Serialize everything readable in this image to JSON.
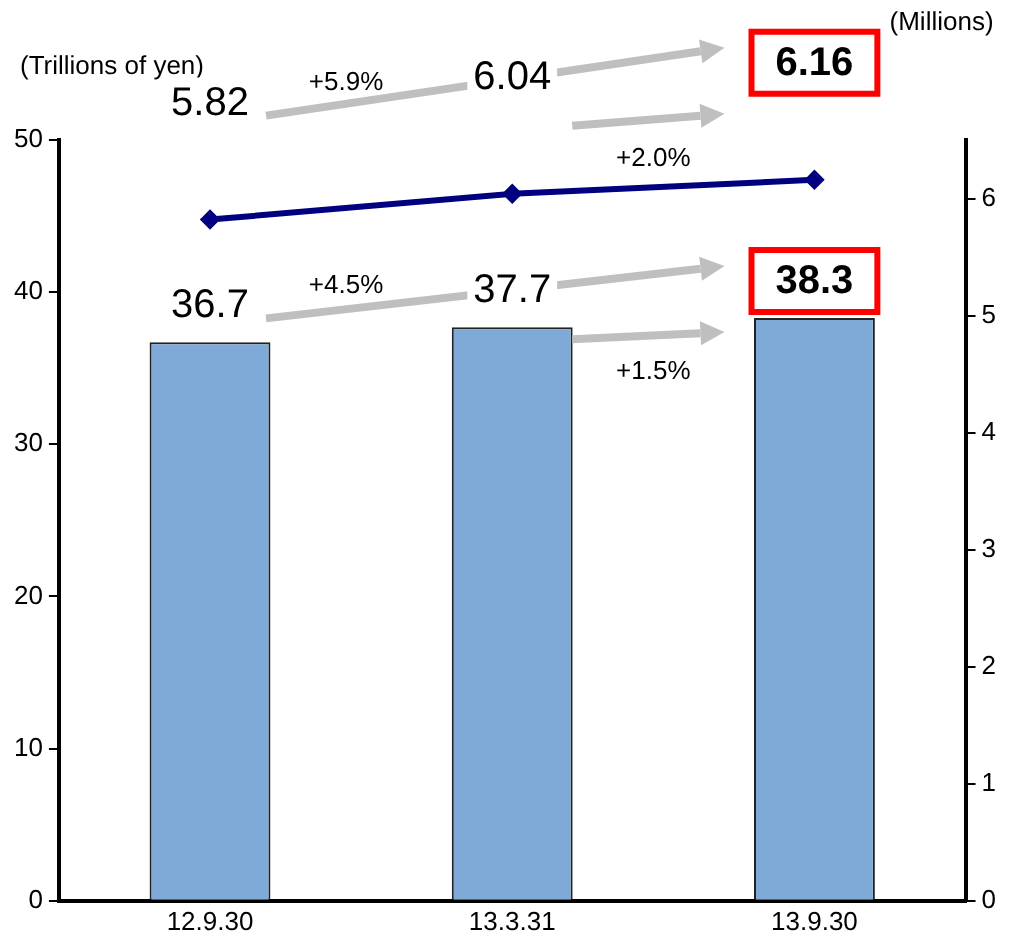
{
  "chart_data": {
    "type": "bar",
    "ylabel": "(Trillions of yen)",
    "y2label": "(Millions)",
    "categories": [
      "12.9.30",
      "13.3.31",
      "13.9.30"
    ],
    "series": [
      {
        "color": "#7fa9d6",
        "values": [
          36.7,
          37.7,
          38.3
        ]
      },
      {
        "type": "line",
        "axis": "y2",
        "color": "#000080",
        "values": [
          5.82,
          6.04,
          6.16
        ]
      }
    ],
    "ylim": [
      0,
      50
    ],
    "yticks": [
      0,
      10,
      20,
      30,
      40,
      50
    ],
    "y2lim": [
      0,
      6.5
    ],
    "y2ticks": [
      0,
      1,
      2,
      3,
      4,
      5,
      6
    ],
    "data_labels": true,
    "marker": "diamond",
    "grid": false,
    "legend": false,
    "annotations": [
      "+5.9%",
      "+2.0%",
      "+4.5%",
      "+1.5%"
    ]
  }
}
